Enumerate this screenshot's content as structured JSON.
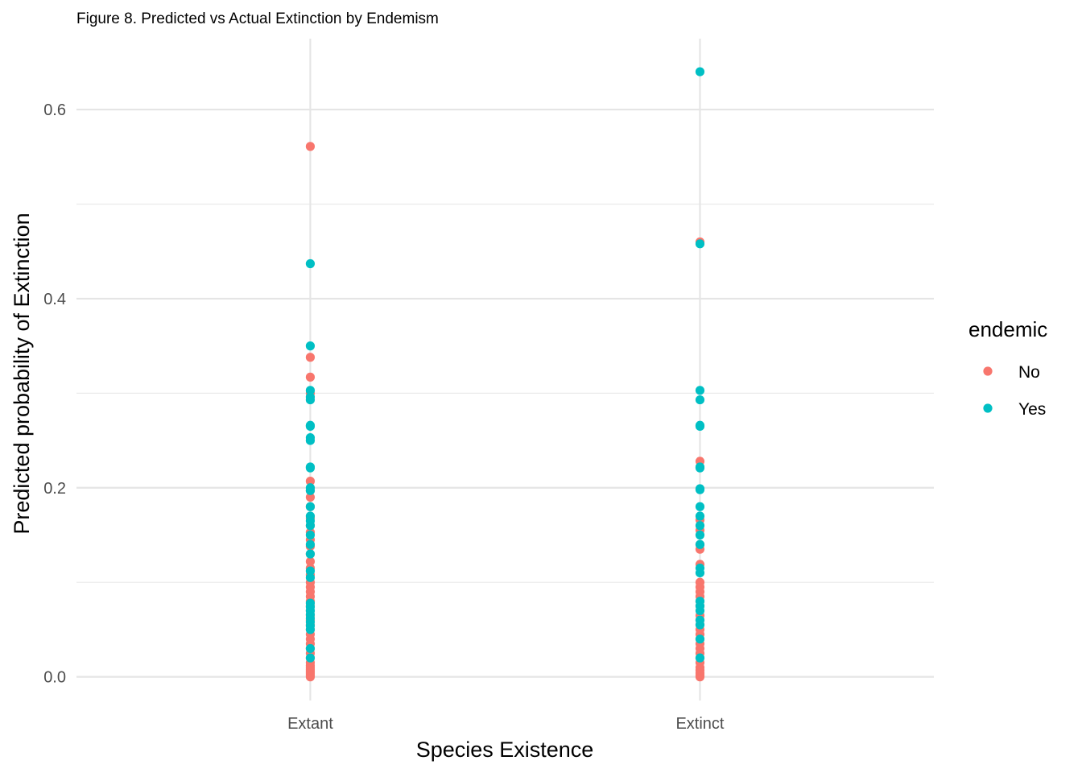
{
  "chart_data": {
    "type": "scatter",
    "title": "Figure 8. Predicted vs Actual Extinction by Endemism",
    "xlabel": "Species Existence",
    "ylabel": "Predicted probability of Extinction",
    "categories": [
      "Extant",
      "Extinct"
    ],
    "y_ticks": [
      "0.0",
      "0.2",
      "0.4",
      "0.6"
    ],
    "ylim": [
      -0.025,
      0.675
    ],
    "grid": true,
    "legend": {
      "title": "endemic",
      "position": "right",
      "entries": [
        "No",
        "Yes"
      ]
    },
    "series": [
      {
        "name": "No",
        "color": "#F8766D",
        "points": [
          {
            "x": "Extant",
            "values": [
              0.561,
              0.338,
              0.317,
              0.3,
              0.207,
              0.197,
              0.19,
              0.18,
              0.168,
              0.16,
              0.153,
              0.145,
              0.138,
              0.13,
              0.122,
              0.115,
              0.108,
              0.1,
              0.095,
              0.09,
              0.085,
              0.08,
              0.075,
              0.07,
              0.065,
              0.06,
              0.055,
              0.05,
              0.045,
              0.04,
              0.035,
              0.03,
              0.025,
              0.02,
              0.015,
              0.012,
              0.01,
              0.008,
              0.006,
              0.004,
              0.002,
              0.0
            ]
          },
          {
            "x": "Extinct",
            "values": [
              0.46,
              0.228,
              0.166,
              0.155,
              0.14,
              0.135,
              0.119,
              0.1,
              0.095,
              0.09,
              0.085,
              0.08,
              0.075,
              0.065,
              0.06,
              0.055,
              0.05,
              0.045,
              0.04,
              0.035,
              0.03,
              0.025,
              0.02,
              0.015,
              0.01,
              0.007,
              0.004,
              0.002,
              0.0
            ]
          }
        ]
      },
      {
        "name": "Yes",
        "color": "#00BFC4",
        "points": [
          {
            "x": "Extant",
            "values": [
              0.437,
              0.35,
              0.303,
              0.296,
              0.293,
              0.266,
              0.265,
              0.253,
              0.25,
              0.222,
              0.221,
              0.2,
              0.197,
              0.18,
              0.17,
              0.165,
              0.16,
              0.15,
              0.14,
              0.13,
              0.112,
              0.105,
              0.078,
              0.074,
              0.07,
              0.066,
              0.062,
              0.058,
              0.054,
              0.05,
              0.03,
              0.02
            ]
          },
          {
            "x": "Extinct",
            "values": [
              0.64,
              0.458,
              0.303,
              0.293,
              0.266,
              0.265,
              0.222,
              0.221,
              0.199,
              0.198,
              0.18,
              0.17,
              0.16,
              0.15,
              0.14,
              0.115,
              0.11,
              0.08,
              0.075,
              0.07,
              0.06,
              0.055,
              0.04,
              0.02
            ]
          }
        ]
      }
    ]
  }
}
